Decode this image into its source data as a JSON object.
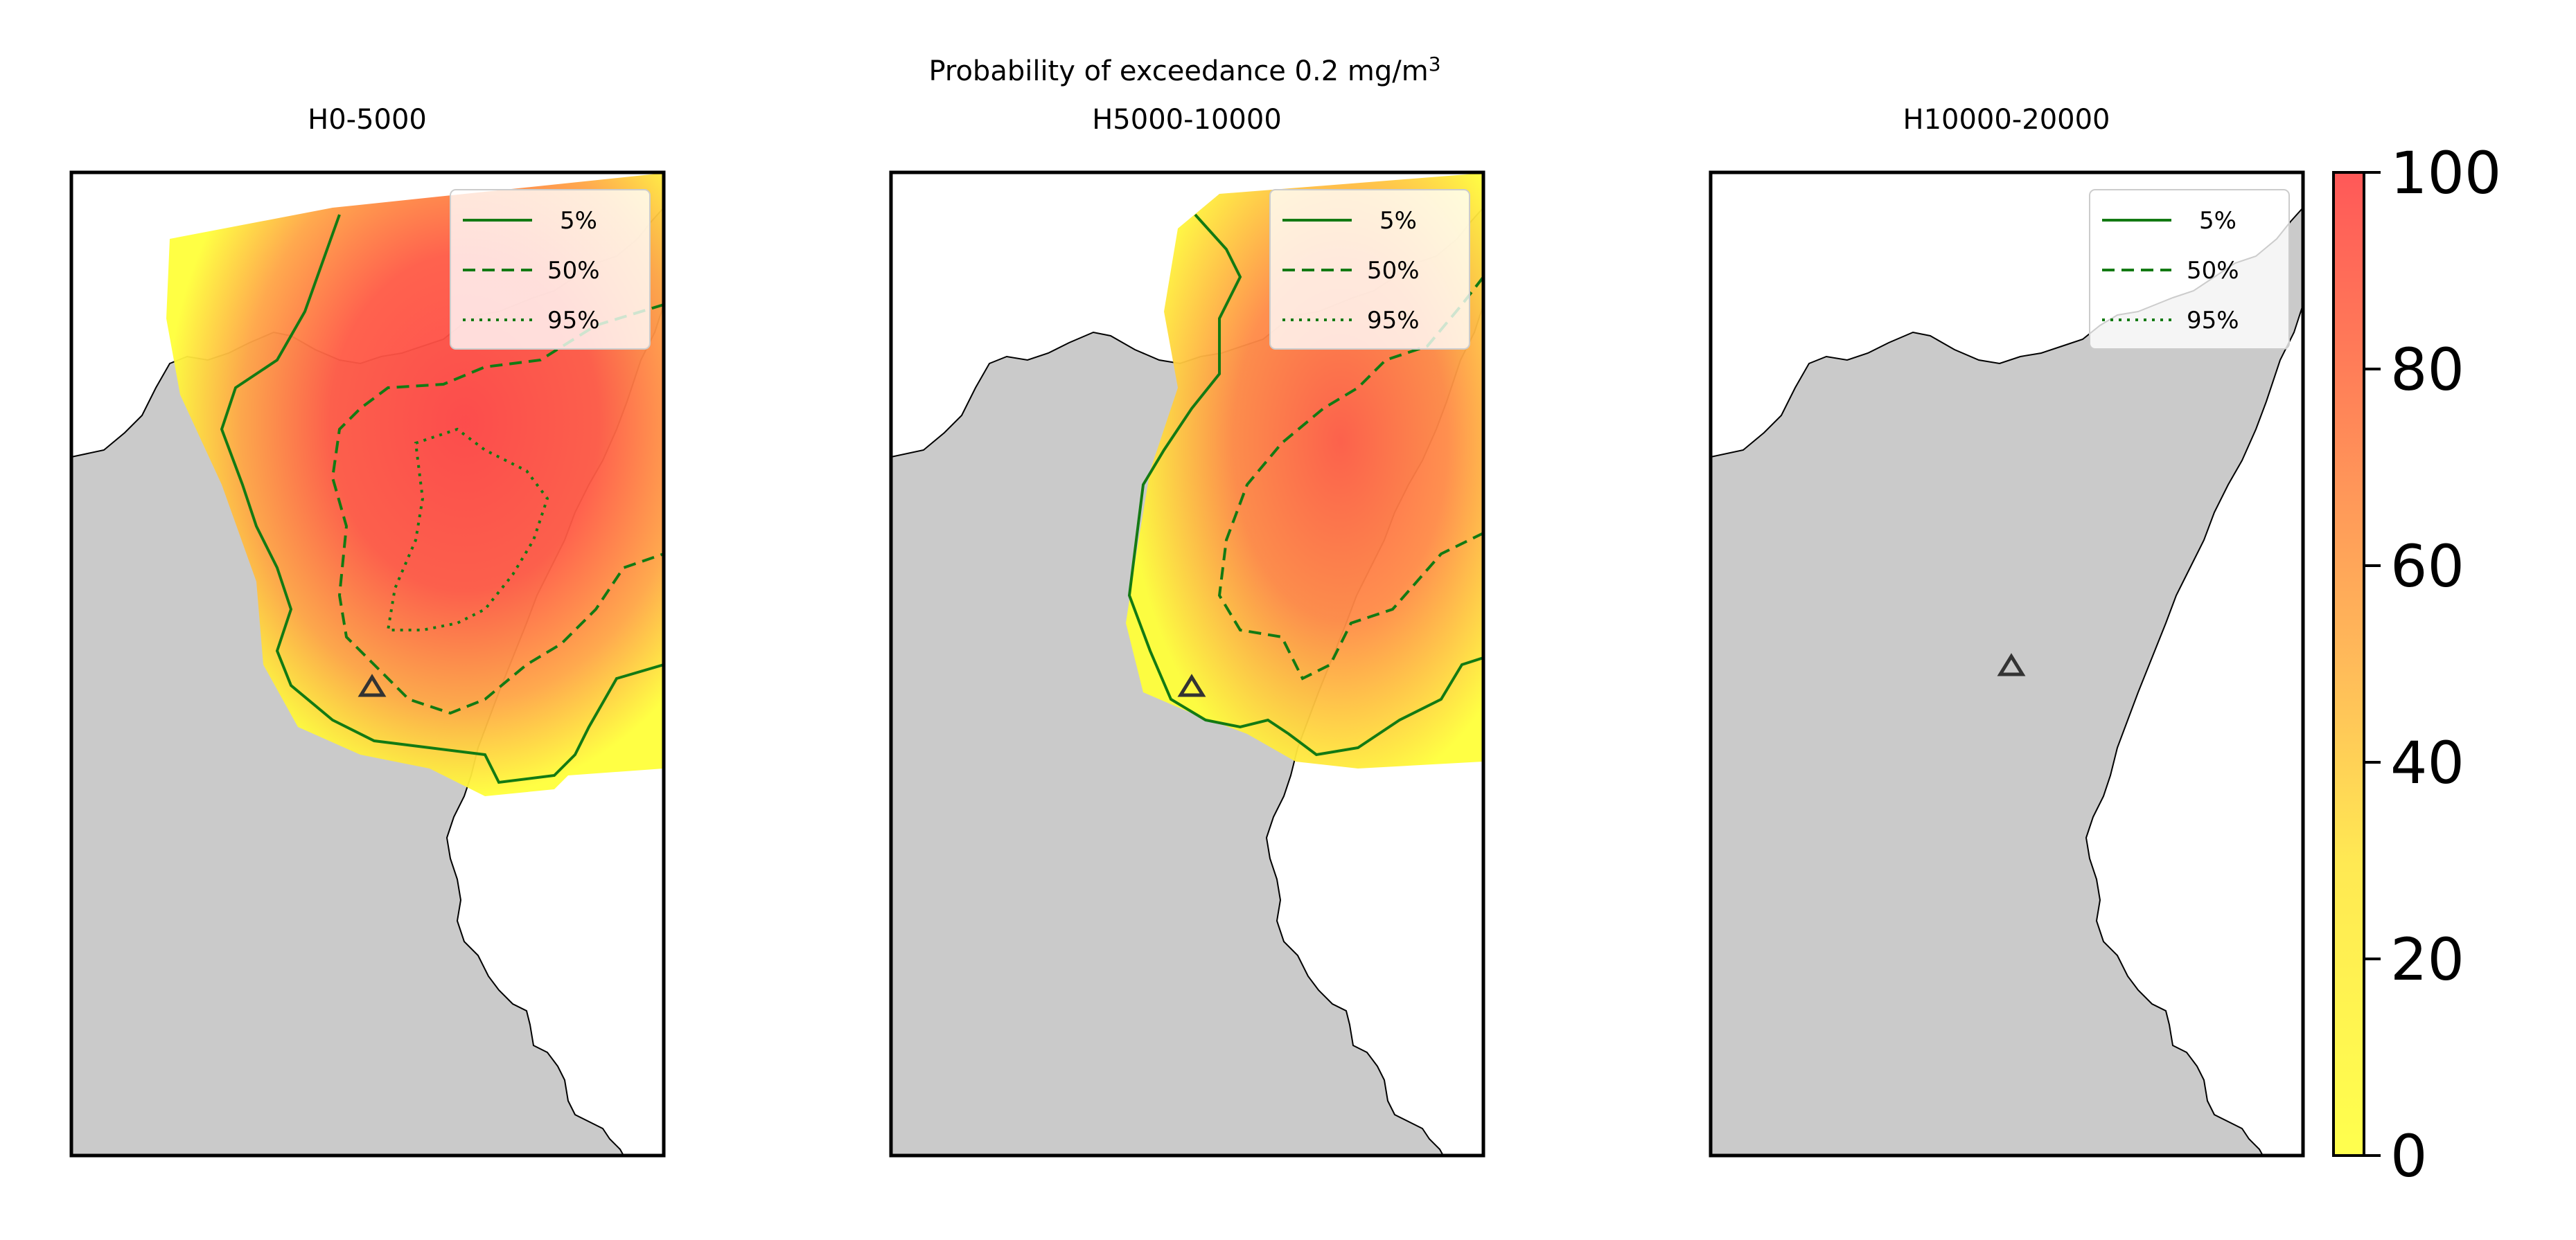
{
  "figure": {
    "title_line1": "Probability of exceedance 0.2 mg/m",
    "title_superscript": "3",
    "colors": {
      "land": "#cacaca",
      "sea": "#ffffff",
      "contour": "#137a13",
      "volcano": "#333333"
    }
  },
  "panels": [
    {
      "id": "h0-5000",
      "title": "H0-5000"
    },
    {
      "id": "h5000-10000",
      "title": "H5000-10000"
    },
    {
      "id": "h10000-20000",
      "title": "H10000-20000"
    }
  ],
  "legend": {
    "entries": [
      {
        "label": "5%",
        "style": "solid"
      },
      {
        "label": "50%",
        "style": "dashed"
      },
      {
        "label": "95%",
        "style": "dotted"
      }
    ]
  },
  "colorbar": {
    "min": 0,
    "max": 100,
    "ticks": [
      "0",
      "20",
      "40",
      "60",
      "80",
      "100"
    ],
    "colors": [
      "#ffff3a",
      "#ff4646"
    ]
  }
}
